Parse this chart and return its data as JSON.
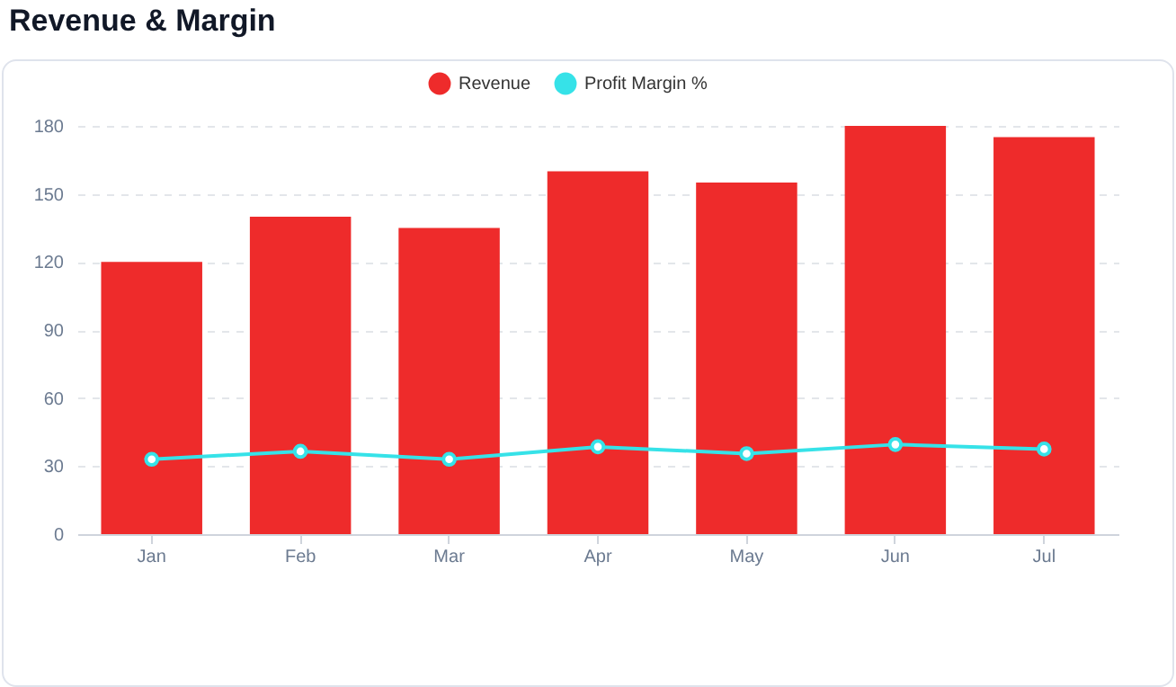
{
  "chart_data": {
    "type": "bar",
    "title": "Revenue & Margin",
    "categories": [
      "Jan",
      "Feb",
      "Mar",
      "Apr",
      "May",
      "Jun",
      "Jul"
    ],
    "series": [
      {
        "name": "Revenue",
        "color": "#ee2b2b",
        "values": [
          120,
          140,
          135,
          160,
          155,
          180,
          175
        ]
      },
      {
        "name": "Profit Margin %",
        "type": "line",
        "color": "#36e2e8",
        "values": [
          33,
          36.5,
          33,
          38.5,
          35.5,
          39.5,
          37.5
        ]
      }
    ],
    "ylim": [
      0,
      180
    ],
    "yticks": [
      0,
      30,
      60,
      90,
      120,
      150,
      180
    ],
    "grid": "y",
    "legend": "top",
    "marker": "circle",
    "line_style": "solid"
  }
}
